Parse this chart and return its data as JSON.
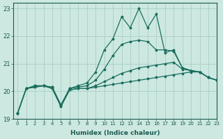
{
  "xlabel": "Humidex (Indice chaleur)",
  "ylabel": "",
  "bg_color": "#cce8e0",
  "grid_color": "#aacfc5",
  "line_color": "#1a6e5e",
  "xlim": [
    -0.5,
    23
  ],
  "ylim": [
    19,
    23.2
  ],
  "yticks": [
    19,
    20,
    21,
    22,
    23
  ],
  "xticks": [
    0,
    1,
    2,
    3,
    4,
    5,
    6,
    7,
    8,
    9,
    10,
    11,
    12,
    13,
    14,
    15,
    16,
    17,
    18,
    19,
    20,
    21,
    22,
    23
  ],
  "series": [
    [
      19.2,
      20.1,
      20.15,
      20.2,
      20.1,
      19.45,
      20.05,
      20.1,
      20.1,
      20.15,
      20.2,
      20.25,
      20.3,
      20.35,
      20.4,
      20.45,
      20.5,
      20.55,
      20.6,
      20.65,
      20.7,
      20.7,
      20.5,
      20.4
    ],
    [
      19.2,
      20.1,
      20.15,
      20.2,
      20.1,
      19.45,
      20.05,
      20.1,
      20.1,
      20.2,
      20.35,
      20.5,
      20.65,
      20.75,
      20.85,
      20.9,
      20.95,
      21.0,
      21.05,
      20.8,
      20.75,
      20.7,
      20.5,
      20.4
    ],
    [
      19.2,
      20.1,
      20.2,
      20.2,
      20.15,
      19.5,
      20.1,
      20.15,
      20.2,
      20.4,
      20.8,
      21.3,
      21.7,
      21.8,
      21.85,
      21.8,
      21.5,
      21.5,
      21.45,
      20.85,
      20.75,
      20.7,
      20.5,
      20.4
    ],
    [
      19.2,
      20.1,
      20.2,
      20.2,
      20.15,
      19.5,
      20.1,
      20.2,
      20.3,
      20.7,
      21.5,
      21.9,
      22.7,
      22.3,
      23.0,
      22.3,
      22.8,
      21.4,
      21.5,
      20.85,
      20.75,
      20.7,
      20.5,
      20.4
    ]
  ]
}
